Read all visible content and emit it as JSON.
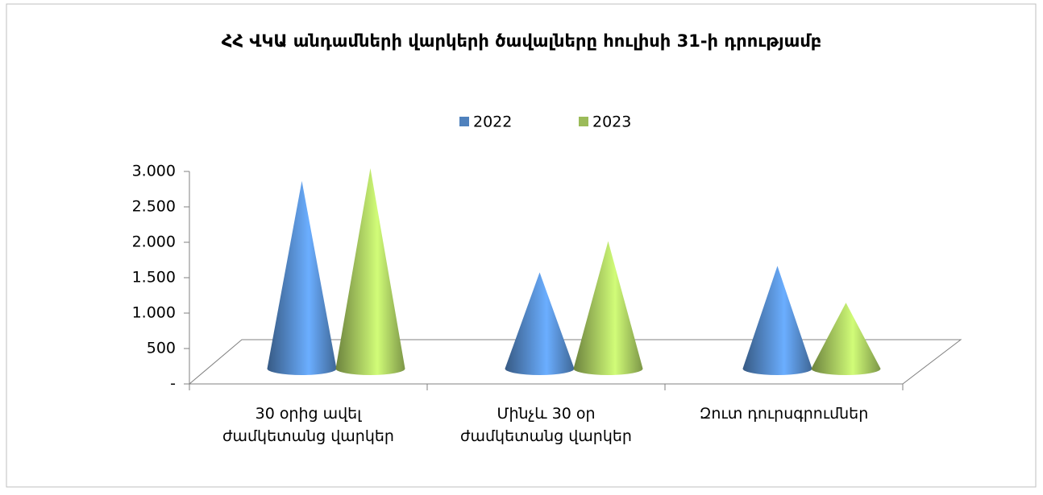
{
  "chart_data": {
    "type": "cone3d",
    "title": "ՀՀ ՎԿԱ անդամների վարկերի ծավալները հուլիսի 31-ի դրությամբ",
    "categories": [
      "30 օրից ավել ժամկետանց վարկեր",
      "Մինչև 30 օր ժամկետանց վարկեր",
      "Զուտ դուրսգրումներ"
    ],
    "series": [
      {
        "name": "2022",
        "color": "#4f81bd",
        "values": [
          2650,
          1360,
          1450
        ]
      },
      {
        "name": "2023",
        "color": "#9bbb59",
        "values": [
          2830,
          1800,
          930
        ]
      }
    ],
    "ylim": [
      0,
      3000
    ],
    "yticks": [
      {
        "value": 0,
        "label": "-"
      },
      500,
      {
        "value": 1000,
        "label": "1.000"
      },
      {
        "value": 1500,
        "label": "1.500"
      },
      {
        "value": 2000,
        "label": "2.000"
      },
      {
        "value": 2500,
        "label": "2.500"
      },
      {
        "value": 3000,
        "label": "3.000"
      }
    ],
    "legend": "top"
  }
}
